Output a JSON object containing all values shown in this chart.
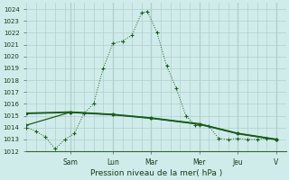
{
  "background_color": "#d0ecea",
  "plot_bg": "#d0ecea",
  "grid_color": "#b0d0cc",
  "line_color": "#1a5c1a",
  "title": "Pression niveau de la mer( hPa )",
  "ylim": [
    1012,
    1024.5
  ],
  "xlim": [
    0,
    13.5
  ],
  "yticks": [
    1012,
    1013,
    1014,
    1015,
    1016,
    1017,
    1018,
    1019,
    1020,
    1021,
    1022,
    1023,
    1024
  ],
  "day_labels": [
    "Sam",
    "Lun",
    "Mar",
    "Mer",
    "Jeu",
    "V"
  ],
  "day_positions": [
    2.3,
    4.5,
    6.5,
    9.0,
    11.0,
    13.0
  ],
  "series1_x": [
    0,
    0.5,
    1.0,
    1.5,
    2.0,
    2.5,
    3.0,
    3.5,
    4.0,
    4.5,
    5.0,
    5.5,
    6.0,
    6.3,
    6.8,
    7.3,
    7.8,
    8.3,
    8.8,
    9.0,
    9.5,
    10.0,
    10.5,
    11.0,
    11.5,
    12.0,
    12.5,
    13.0
  ],
  "series1_y": [
    1014.0,
    1013.7,
    1013.2,
    1012.2,
    1013.0,
    1013.5,
    1015.2,
    1016.0,
    1019.0,
    1021.1,
    1021.3,
    1021.8,
    1023.7,
    1023.8,
    1022.0,
    1019.2,
    1017.3,
    1015.0,
    1014.2,
    1014.2,
    1014.1,
    1013.1,
    1013.0,
    1013.1,
    1013.0,
    1013.0,
    1013.1,
    1013.0
  ],
  "series2_x": [
    0,
    2.3,
    4.5,
    6.5,
    9.0,
    11.0,
    13.0
  ],
  "series2_y": [
    1015.2,
    1015.3,
    1015.1,
    1014.8,
    1014.3,
    1013.5,
    1013.0
  ],
  "series3_x": [
    0,
    2.3,
    4.5,
    6.5,
    9.0,
    11.0,
    13.0
  ],
  "series3_y": [
    1014.2,
    1015.3,
    1015.1,
    1014.8,
    1014.3,
    1013.5,
    1013.0
  ]
}
